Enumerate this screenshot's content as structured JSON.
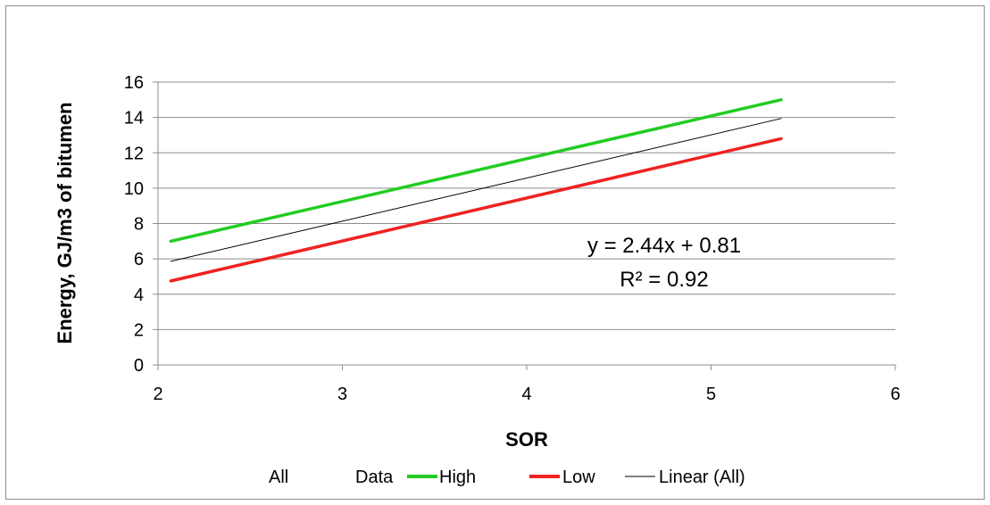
{
  "chart_data": {
    "type": "line",
    "title": "",
    "xlabel": "SOR",
    "ylabel": "Energy, GJ/m3 of bitumen",
    "xlim": [
      2,
      6
    ],
    "ylim": [
      0,
      16
    ],
    "xticks": [
      2,
      3,
      4,
      5,
      6
    ],
    "yticks": [
      0,
      2,
      4,
      6,
      8,
      10,
      12,
      14,
      16
    ],
    "grid": "horizontal",
    "legend_position": "bottom",
    "series": [
      {
        "name": "High",
        "color": "#22cc22",
        "x": [
          2.07,
          5.38
        ],
        "y": [
          7.0,
          15.0
        ]
      },
      {
        "name": "Low",
        "color": "#ee2222",
        "x": [
          2.07,
          5.38
        ],
        "y": [
          4.75,
          12.8
        ]
      },
      {
        "name": "Linear (All)",
        "color": "#000000",
        "x": [
          2.07,
          5.38
        ],
        "y": [
          5.86,
          13.94
        ]
      }
    ],
    "legend": [
      {
        "label": "All",
        "color": ""
      },
      {
        "label": "Data",
        "color": ""
      },
      {
        "label": "High",
        "color": "#22cc22"
      },
      {
        "label": "Low",
        "color": "#ee2222"
      },
      {
        "label": "Linear (All)",
        "color": "#000000"
      }
    ],
    "annotations": [
      {
        "text": "y = 2.44x + 0.81"
      },
      {
        "text": "R² = 0.92"
      }
    ]
  }
}
